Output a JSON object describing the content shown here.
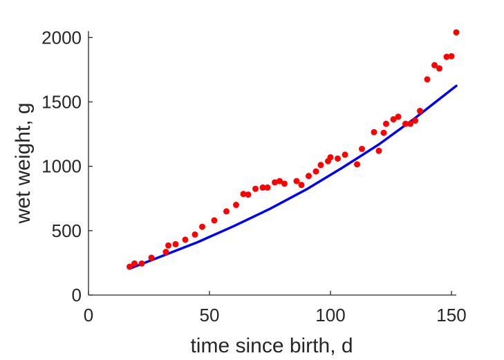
{
  "chart_data": {
    "type": "scatter",
    "title": "",
    "xlabel": "time since birth, d",
    "ylabel": "wet weight, g",
    "xlim": [
      0,
      152
    ],
    "ylim": [
      0,
      2050
    ],
    "x_ticks": [
      0,
      50,
      100,
      150
    ],
    "x_tick_labels": [
      "0",
      "50",
      "100",
      "150"
    ],
    "y_ticks": [
      0,
      500,
      1000,
      1500,
      2000
    ],
    "y_tick_labels": [
      "0",
      "500",
      "1000",
      "1500",
      "2000"
    ],
    "grid": false,
    "colors": {
      "points": "#ff0000",
      "curve": "#0000ff",
      "axis": "#262626"
    },
    "series": [
      {
        "kind": "scatter",
        "x": [
          17,
          19,
          22,
          26,
          32,
          33,
          36,
          40,
          44,
          47,
          52,
          57,
          61,
          64,
          66,
          69,
          72,
          74,
          77,
          79,
          81,
          86,
          88,
          91,
          94,
          96,
          99,
          100,
          103,
          106,
          111,
          113,
          118,
          120,
          122,
          123,
          126,
          128,
          131,
          133,
          135,
          137,
          140,
          143,
          145,
          148,
          150,
          152
        ],
        "y": [
          220,
          245,
          245,
          290,
          335,
          385,
          395,
          430,
          470,
          530,
          580,
          650,
          700,
          785,
          780,
          825,
          835,
          835,
          875,
          885,
          865,
          885,
          855,
          925,
          960,
          1010,
          1040,
          1070,
          1060,
          1090,
          1015,
          1135,
          1265,
          1120,
          1260,
          1330,
          1365,
          1385,
          1330,
          1330,
          1355,
          1430,
          1675,
          1785,
          1760,
          1850,
          1855,
          2040
        ]
      },
      {
        "kind": "line",
        "x": [
          17,
          30,
          45,
          60,
          75,
          90,
          105,
          120,
          135,
          152
        ],
        "y": [
          205,
          300,
          410,
          535,
          670,
          820,
          990,
          1170,
          1375,
          1625
        ]
      }
    ]
  }
}
